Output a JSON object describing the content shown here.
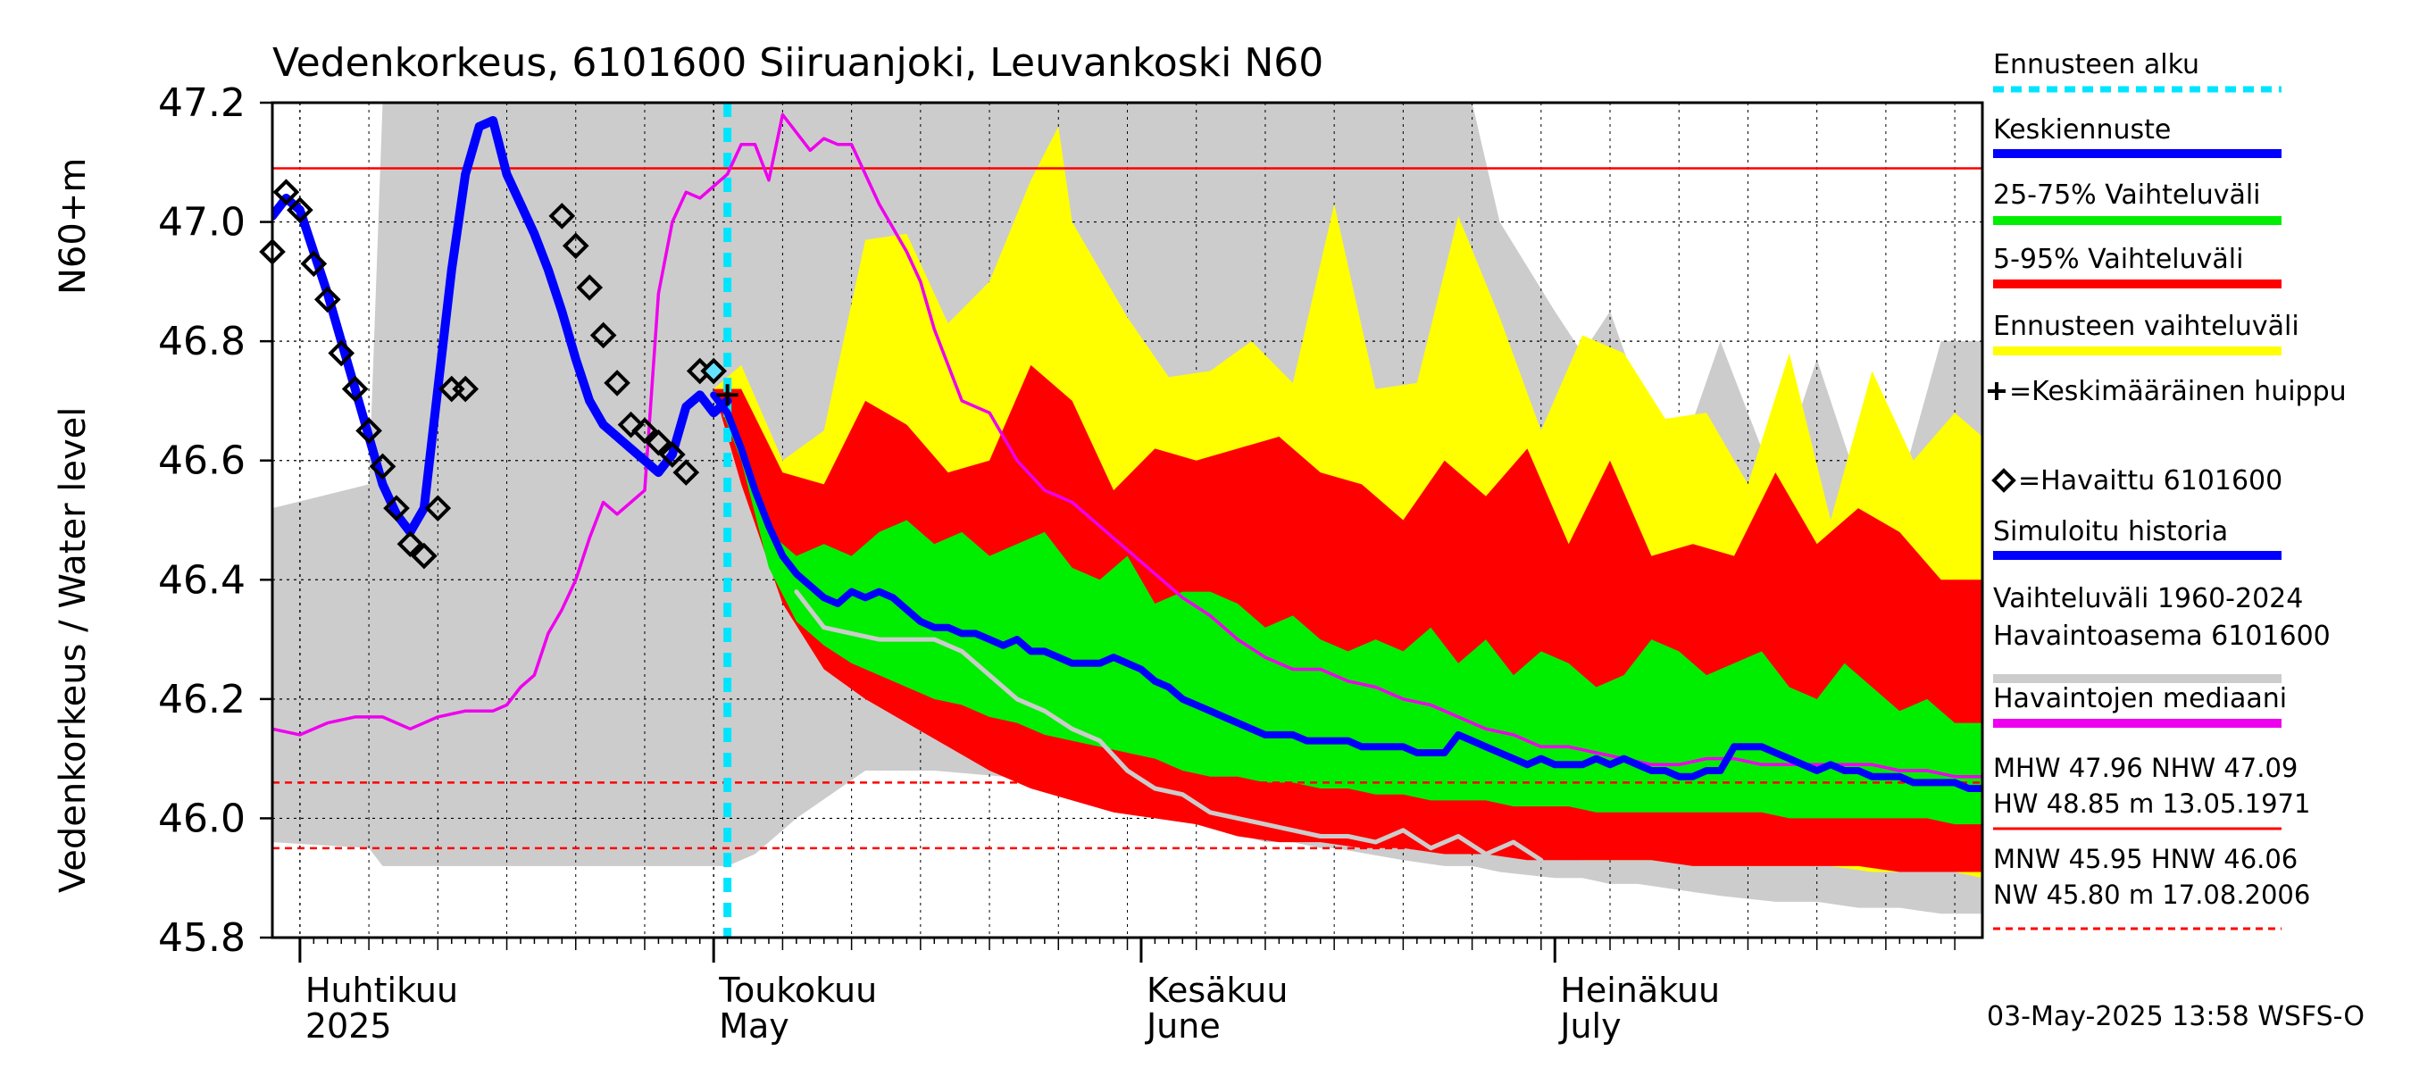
{
  "chart_data": {
    "type": "line",
    "title": "Vedenkorkeus, 6101600 Siiruanjoki, Leuvankoski N60",
    "ylabel_left": "Vedenkorkeus / Water level",
    "ylabel_right": "N60+m",
    "ylim": [
      45.8,
      47.2
    ],
    "yticks": [
      "45.8",
      "46.0",
      "46.2",
      "46.4",
      "46.6",
      "46.8",
      "47.0",
      "47.2"
    ],
    "xlim_days": [
      -2,
      122
    ],
    "x_labels": [
      {
        "day": 0,
        "line1": "Huhtikuu",
        "line2": "2025"
      },
      {
        "day": 30,
        "line1": "Toukokuu",
        "line2": "May"
      },
      {
        "day": 61,
        "line1": "Kesäkuu",
        "line2": "June"
      },
      {
        "day": 91,
        "line1": "Heinäkuu",
        "line2": "July"
      }
    ],
    "forecast_start_day": 31,
    "reference_lines": [
      {
        "name": "NHW",
        "y": 47.09,
        "color": "#ff0000",
        "style": "solid"
      },
      {
        "name": "HNW",
        "y": 46.06,
        "color": "#ff0000",
        "style": "dashed"
      },
      {
        "name": "MNW",
        "y": 45.95,
        "color": "#ff0000",
        "style": "dashed"
      }
    ],
    "legend": [
      {
        "label": "Ennusteen alku",
        "color": "#00e5ff",
        "style": "dashed"
      },
      {
        "label": "Keskiennuste",
        "color": "#0000ff",
        "style": "solid"
      },
      {
        "label": "25-75% Vaihteluväli",
        "color": "#00ee00",
        "style": "solid"
      },
      {
        "label": "5-95% Vaihteluväli",
        "color": "#ff0000",
        "style": "solid"
      },
      {
        "label": "Ennusteen vaihteluväli",
        "color": "#ffff00",
        "style": "solid"
      },
      {
        "label": "+=Keskimääräinen huippu",
        "color": "#000000",
        "style": "none"
      },
      {
        "label": "=Havaittu 6101600",
        "color": "#000000",
        "style": "none"
      },
      {
        "label": "Simuloitu historia",
        "color": "#0000ff",
        "style": "solid"
      },
      {
        "label": "Vaihteluväli 1960-2024\n Havaintoasema 6101600",
        "color": "#cccccc",
        "style": "solid"
      },
      {
        "label": "Havaintojen mediaani",
        "color": "#ee00ee",
        "style": "solid"
      }
    ],
    "stats": {
      "line1": "MHW  47.96 NHW  47.09",
      "line2": "HW  48.85 m 13.05.1971",
      "line3": "MNW  45.95 HNW  46.06",
      "line4": "NW  45.80 m 17.08.2006"
    },
    "footer": "03-May-2025 13:58 WSFS-O",
    "series": {
      "historical_range": {
        "color": "#cccccc",
        "x": [
          -2,
          5,
          6,
          14,
          20,
          26,
          29,
          30,
          31,
          33,
          36,
          41,
          46,
          51,
          55,
          57,
          58,
          61,
          63,
          65,
          66,
          67,
          70,
          72,
          74,
          75,
          80,
          83,
          85,
          87,
          91,
          93,
          95,
          97,
          100,
          103,
          107,
          110,
          113,
          116,
          119,
          122
        ],
        "upper": [
          46.52,
          46.56,
          47.2,
          47.2,
          47.2,
          47.2,
          47.2,
          47.2,
          47.2,
          47.2,
          47.2,
          47.2,
          47.2,
          47.2,
          47.2,
          47.2,
          47.2,
          47.2,
          47.2,
          47.2,
          47.2,
          47.2,
          47.2,
          47.2,
          47.2,
          47.2,
          47.2,
          47.2,
          47.2,
          47.0,
          46.85,
          46.78,
          46.85,
          46.72,
          46.6,
          46.8,
          46.56,
          46.77,
          46.56,
          46.55,
          46.8,
          46.8
        ],
        "lower": [
          45.96,
          45.95,
          45.92,
          45.92,
          45.92,
          45.92,
          45.92,
          45.92,
          45.92,
          45.94,
          46.0,
          46.08,
          46.08,
          46.07,
          46.05,
          46.04,
          46.03,
          46.02,
          46.01,
          46.0,
          45.99,
          45.98,
          45.96,
          45.96,
          45.95,
          45.95,
          45.93,
          45.92,
          45.92,
          45.91,
          45.9,
          45.9,
          45.89,
          45.89,
          45.88,
          45.87,
          45.86,
          45.86,
          45.85,
          45.85,
          45.84,
          45.84
        ]
      },
      "forecast_range": {
        "color": "#ffff00",
        "x": [
          30,
          32,
          35,
          38,
          41,
          44,
          47,
          50,
          53,
          55,
          56,
          58,
          60,
          63,
          66,
          69,
          72,
          75,
          78,
          81,
          84,
          87,
          90,
          93,
          96,
          99,
          102,
          105,
          108,
          111,
          114,
          117,
          120,
          122
        ],
        "upper": [
          46.72,
          46.76,
          46.6,
          46.65,
          46.97,
          46.98,
          46.83,
          46.9,
          47.07,
          47.16,
          47.0,
          46.92,
          46.84,
          46.74,
          46.75,
          46.8,
          46.73,
          47.03,
          46.72,
          46.73,
          47.01,
          46.84,
          46.65,
          46.81,
          46.78,
          46.67,
          46.68,
          46.56,
          46.78,
          46.5,
          46.75,
          46.6,
          46.68,
          46.64
        ],
        "lower": [
          46.72,
          46.6,
          46.4,
          46.3,
          46.25,
          46.22,
          46.2,
          46.16,
          46.1,
          46.07,
          46.06,
          46.06,
          46.05,
          46.04,
          46.03,
          46.01,
          46.0,
          45.99,
          45.98,
          45.96,
          45.95,
          45.94,
          45.94,
          45.93,
          45.93,
          45.93,
          45.93,
          45.92,
          45.92,
          45.92,
          45.91,
          45.91,
          45.91,
          45.9
        ]
      },
      "p5_95": {
        "color": "#ff0000",
        "x": [
          30,
          32,
          35,
          38,
          41,
          44,
          47,
          50,
          53,
          56,
          59,
          62,
          65,
          68,
          71,
          74,
          77,
          80,
          83,
          86,
          89,
          92,
          95,
          98,
          101,
          104,
          107,
          110,
          113,
          116,
          119,
          122
        ],
        "upper": [
          46.72,
          46.72,
          46.58,
          46.56,
          46.7,
          46.66,
          46.58,
          46.6,
          46.76,
          46.7,
          46.55,
          46.62,
          46.6,
          46.62,
          46.64,
          46.58,
          46.56,
          46.5,
          46.6,
          46.54,
          46.62,
          46.46,
          46.6,
          46.44,
          46.46,
          46.44,
          46.58,
          46.46,
          46.52,
          46.48,
          46.4,
          46.4
        ],
        "lower": [
          46.72,
          46.56,
          46.36,
          46.25,
          46.2,
          46.16,
          46.12,
          46.08,
          46.05,
          46.03,
          46.01,
          46.0,
          45.99,
          45.97,
          45.96,
          45.96,
          45.95,
          45.95,
          45.94,
          45.94,
          45.93,
          45.93,
          45.93,
          45.93,
          45.92,
          45.92,
          45.92,
          45.92,
          45.92,
          45.91,
          45.91,
          45.91
        ]
      },
      "p25_75": {
        "color": "#00ee00",
        "x": [
          30,
          32,
          34,
          36,
          38,
          40,
          42,
          44,
          46,
          48,
          50,
          52,
          54,
          56,
          58,
          60,
          62,
          64,
          66,
          68,
          70,
          72,
          74,
          76,
          78,
          80,
          82,
          84,
          86,
          88,
          90,
          92,
          94,
          96,
          98,
          100,
          102,
          104,
          106,
          108,
          110,
          112,
          114,
          116,
          118,
          120,
          122
        ],
        "upper": [
          46.72,
          46.62,
          46.48,
          46.44,
          46.46,
          46.44,
          46.48,
          46.5,
          46.46,
          46.48,
          46.44,
          46.46,
          46.48,
          46.42,
          46.4,
          46.44,
          46.36,
          46.38,
          46.38,
          46.36,
          46.32,
          46.34,
          46.3,
          46.28,
          46.3,
          46.28,
          46.32,
          46.26,
          46.3,
          46.24,
          46.28,
          46.26,
          46.22,
          46.24,
          46.3,
          46.28,
          46.24,
          46.26,
          46.28,
          46.22,
          46.2,
          46.26,
          46.22,
          46.18,
          46.2,
          46.16,
          46.16
        ],
        "lower": [
          46.72,
          46.6,
          46.42,
          46.33,
          46.29,
          46.26,
          46.24,
          46.22,
          46.2,
          46.19,
          46.17,
          46.16,
          46.14,
          46.13,
          46.12,
          46.11,
          46.1,
          46.08,
          46.07,
          46.07,
          46.06,
          46.06,
          46.05,
          46.05,
          46.04,
          46.04,
          46.03,
          46.03,
          46.03,
          46.02,
          46.02,
          46.02,
          46.01,
          46.01,
          46.01,
          46.01,
          46.01,
          46.01,
          46.01,
          46.0,
          46.0,
          46.0,
          46.0,
          46.0,
          46.0,
          45.99,
          45.99
        ]
      },
      "median_history": {
        "color": "#ee00ee",
        "x": [
          -2,
          0,
          2,
          4,
          6,
          7,
          8,
          10,
          12,
          13,
          14,
          15,
          16,
          17,
          18,
          19,
          20,
          21,
          22,
          23,
          24,
          25,
          26,
          27,
          28,
          29,
          30,
          31,
          32,
          33,
          34,
          35,
          36,
          37,
          38,
          39,
          40,
          41,
          42,
          43,
          44,
          45,
          46,
          48,
          50,
          52,
          54,
          56,
          58,
          60,
          62,
          64,
          66,
          68,
          70,
          72,
          74,
          76,
          78,
          80,
          82,
          84,
          86,
          88,
          90,
          92,
          94,
          96,
          98,
          100,
          102,
          104,
          106,
          108,
          110,
          112,
          114,
          116,
          118,
          120,
          122
        ],
        "y": [
          46.15,
          46.14,
          46.16,
          46.17,
          46.17,
          46.16,
          46.15,
          46.17,
          46.18,
          46.18,
          46.18,
          46.19,
          46.22,
          46.24,
          46.31,
          46.35,
          46.4,
          46.47,
          46.53,
          46.51,
          46.53,
          46.55,
          46.88,
          47.0,
          47.05,
          47.04,
          47.06,
          47.08,
          47.13,
          47.13,
          47.07,
          47.18,
          47.15,
          47.12,
          47.14,
          47.13,
          47.13,
          47.08,
          47.03,
          46.99,
          46.95,
          46.9,
          46.82,
          46.7,
          46.68,
          46.6,
          46.55,
          46.53,
          46.49,
          46.45,
          46.41,
          46.37,
          46.34,
          46.3,
          46.27,
          46.25,
          46.25,
          46.23,
          46.22,
          46.2,
          46.19,
          46.17,
          46.15,
          46.14,
          46.12,
          46.12,
          46.11,
          46.1,
          46.09,
          46.09,
          46.1,
          46.1,
          46.09,
          46.09,
          46.09,
          46.09,
          46.09,
          46.08,
          46.08,
          46.07,
          46.07
        ]
      },
      "observed_gray_path": {
        "color": "#cccccc",
        "x": [
          36,
          38,
          40,
          42,
          44,
          46,
          48,
          50,
          52,
          54,
          56,
          58,
          60,
          62,
          64,
          66,
          68,
          70,
          72,
          74,
          76,
          78,
          80,
          82,
          84,
          86,
          88,
          90
        ],
        "y": [
          46.38,
          46.32,
          46.31,
          46.3,
          46.3,
          46.3,
          46.28,
          46.24,
          46.2,
          46.18,
          46.15,
          46.13,
          46.08,
          46.05,
          46.04,
          46.01,
          46.0,
          45.99,
          45.98,
          45.97,
          45.97,
          45.96,
          45.98,
          45.95,
          45.97,
          45.94,
          45.96,
          45.93
        ]
      },
      "simulated_history": {
        "color": "#0000ff",
        "x": [
          -2,
          -1,
          0,
          1,
          2,
          3,
          4,
          5,
          6,
          7,
          8,
          9,
          10,
          11,
          12,
          13,
          14,
          15,
          16,
          17,
          18,
          19,
          20,
          21,
          22,
          23,
          24,
          25,
          26,
          27,
          28,
          29,
          30,
          31
        ],
        "y": [
          47.01,
          47.04,
          47.02,
          46.95,
          46.88,
          46.8,
          46.72,
          46.64,
          46.56,
          46.51,
          46.48,
          46.52,
          46.72,
          46.92,
          47.08,
          47.16,
          47.17,
          47.08,
          47.03,
          46.98,
          46.92,
          46.85,
          46.77,
          46.7,
          46.66,
          46.64,
          46.62,
          46.6,
          46.58,
          46.61,
          46.69,
          46.71,
          46.68,
          46.7
        ]
      },
      "mean_forecast": {
        "color": "#0000ff",
        "x": [
          30,
          31,
          32,
          33,
          34,
          35,
          36,
          37,
          38,
          39,
          40,
          41,
          42,
          43,
          44,
          45,
          46,
          47,
          48,
          49,
          50,
          51,
          52,
          53,
          54,
          55,
          56,
          57,
          58,
          59,
          60,
          61,
          62,
          63,
          64,
          65,
          66,
          67,
          68,
          69,
          70,
          71,
          72,
          73,
          74,
          75,
          76,
          77,
          78,
          79,
          80,
          81,
          82,
          83,
          84,
          85,
          86,
          87,
          88,
          89,
          90,
          91,
          92,
          93,
          94,
          95,
          96,
          97,
          98,
          99,
          100,
          101,
          102,
          103,
          104,
          105,
          106,
          107,
          108,
          109,
          110,
          111,
          112,
          113,
          114,
          115,
          116,
          117,
          118,
          119,
          120,
          121,
          122
        ],
        "y": [
          46.71,
          46.68,
          46.62,
          46.55,
          46.49,
          46.44,
          46.41,
          46.39,
          46.37,
          46.36,
          46.38,
          46.37,
          46.38,
          46.37,
          46.35,
          46.33,
          46.32,
          46.32,
          46.31,
          46.31,
          46.3,
          46.29,
          46.3,
          46.28,
          46.28,
          46.27,
          46.26,
          46.26,
          46.26,
          46.27,
          46.26,
          46.25,
          46.23,
          46.22,
          46.2,
          46.19,
          46.18,
          46.17,
          46.16,
          46.15,
          46.14,
          46.14,
          46.14,
          46.13,
          46.13,
          46.13,
          46.13,
          46.12,
          46.12,
          46.12,
          46.12,
          46.11,
          46.11,
          46.11,
          46.14,
          46.13,
          46.12,
          46.11,
          46.1,
          46.09,
          46.1,
          46.09,
          46.09,
          46.09,
          46.1,
          46.09,
          46.1,
          46.09,
          46.08,
          46.08,
          46.07,
          46.07,
          46.08,
          46.08,
          46.12,
          46.12,
          46.12,
          46.11,
          46.1,
          46.09,
          46.08,
          46.09,
          46.08,
          46.08,
          46.07,
          46.07,
          46.07,
          46.06,
          46.06,
          46.06,
          46.06,
          46.05,
          46.05
        ]
      },
      "observed": {
        "marker": "diamond",
        "x": [
          -2,
          -1,
          0,
          1,
          2,
          3,
          4,
          5,
          6,
          7,
          8,
          9,
          10,
          11,
          12,
          19,
          20,
          21,
          22,
          23,
          24,
          25,
          26,
          27,
          28,
          29,
          30
        ],
        "y": [
          46.95,
          47.05,
          47.02,
          46.93,
          46.87,
          46.78,
          46.72,
          46.65,
          46.59,
          46.52,
          46.46,
          46.44,
          46.52,
          46.72,
          46.72,
          47.01,
          46.96,
          46.89,
          46.81,
          46.73,
          46.66,
          46.65,
          46.63,
          46.61,
          46.58,
          46.75,
          46.75
        ]
      },
      "mean_peak": {
        "marker": "plus",
        "x": [
          31
        ],
        "y": [
          46.71
        ]
      }
    }
  }
}
